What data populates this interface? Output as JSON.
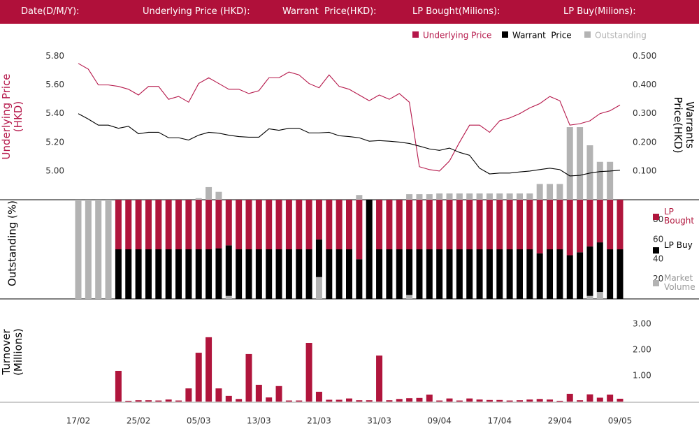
{
  "header": {
    "fields": [
      "Date(D/M/Y):",
      "Underlying Price (HKD):",
      "Warrant  Price(HKD):",
      "LP Bought(Milions):",
      "LP Buy(Milions):"
    ]
  },
  "chart_data": [
    {
      "type": "line",
      "ylabel": "Underlying Price (HKD)",
      "y2label": "Warrants  Price(HKD)",
      "ylim": [
        4.8,
        5.9
      ],
      "yticks": [
        {
          "value": 5.0,
          "label": "5.00"
        },
        {
          "value": 5.2,
          "label": "5.20"
        },
        {
          "value": 5.4,
          "label": "5.40"
        },
        {
          "value": 5.6,
          "label": "5.60"
        },
        {
          "value": 5.8,
          "label": "5.80"
        }
      ],
      "y2lim": [
        0,
        0.55
      ],
      "y2ticks": [
        {
          "value": 0.1,
          "label": "0.100"
        },
        {
          "value": 0.2,
          "label": "0.200"
        },
        {
          "value": 0.3,
          "label": "0.300"
        },
        {
          "value": 0.4,
          "label": "0.400"
        },
        {
          "value": 0.5,
          "label": "0.500"
        }
      ],
      "y3lim": [
        0,
        100
      ],
      "series": [
        {
          "name": "Underlying Price",
          "type": "line",
          "color": "#b5174a",
          "values": [
            5.75,
            5.71,
            5.6,
            5.6,
            5.59,
            5.57,
            5.53,
            5.59,
            5.59,
            5.5,
            5.52,
            5.48,
            5.61,
            5.65,
            5.61,
            5.57,
            5.57,
            5.54,
            5.56,
            5.65,
            5.65,
            5.69,
            5.67,
            5.61,
            5.58,
            5.67,
            5.59,
            5.57,
            5.53,
            5.49,
            5.53,
            5.5,
            5.54,
            5.48,
            5.03,
            5.01,
            5.0,
            5.07,
            5.2,
            5.32,
            5.32,
            5.27,
            5.35,
            5.37,
            5.4,
            5.44,
            5.47,
            5.52,
            5.49,
            5.32,
            5.33,
            5.35,
            5.4,
            5.42,
            5.46
          ]
        },
        {
          "name": "Warrant  Price",
          "type": "line",
          "axis": "y2",
          "color": "#000000",
          "values": [
            0.3,
            0.281,
            0.26,
            0.26,
            0.249,
            0.256,
            0.23,
            0.235,
            0.235,
            0.216,
            0.216,
            0.208,
            0.225,
            0.235,
            0.232,
            0.225,
            0.22,
            0.218,
            0.218,
            0.247,
            0.242,
            0.249,
            0.249,
            0.233,
            0.233,
            0.235,
            0.223,
            0.22,
            0.216,
            0.204,
            0.206,
            0.204,
            0.201,
            0.196,
            0.187,
            0.177,
            0.172,
            0.18,
            0.165,
            0.155,
            0.11,
            0.09,
            0.093,
            0.093,
            0.097,
            0.1,
            0.105,
            0.11,
            0.105,
            0.083,
            0.085,
            0.093,
            0.098,
            0.1,
            0.103
          ]
        },
        {
          "name": "Outstanding",
          "type": "bar",
          "axis": "y3",
          "color": "#b3b3b3",
          "values": [
            0,
            0,
            0,
            0,
            0,
            0,
            0,
            0,
            0,
            0,
            0,
            0,
            1,
            8,
            5,
            0,
            0,
            0,
            0,
            0,
            0,
            0,
            0,
            0,
            0,
            0,
            0,
            0,
            3,
            0,
            0,
            0,
            0,
            3.5,
            3.5,
            3.5,
            4,
            4,
            4,
            4,
            4,
            4,
            4,
            4,
            4,
            4,
            10,
            10,
            10,
            46,
            46,
            34.5,
            24,
            24,
            0
          ]
        }
      ]
    },
    {
      "type": "bar",
      "stacked": true,
      "ylabel": "Outstanding (%)",
      "ylim": [
        0,
        100
      ],
      "yticks": [
        20,
        40,
        60,
        80
      ],
      "series": [
        {
          "name": "LP Bought",
          "color": "#b0153c",
          "values": [
            0,
            0,
            0,
            0,
            50,
            50,
            50,
            50,
            50,
            50,
            50,
            50,
            50,
            50,
            49,
            46,
            50,
            50,
            50,
            50,
            50,
            50,
            50,
            50,
            40,
            50,
            50,
            50,
            60,
            0,
            50,
            50,
            50,
            50,
            50,
            50,
            50,
            50,
            50,
            50,
            50,
            50,
            50,
            50,
            50,
            50,
            54,
            50,
            50,
            56,
            53,
            47,
            43,
            50,
            50
          ]
        },
        {
          "name": "LP Buy",
          "color": "#000000",
          "values": [
            0,
            0,
            0,
            0,
            50,
            50,
            50,
            50,
            50,
            50,
            50,
            50,
            50,
            50,
            51,
            51,
            50,
            50,
            50,
            50,
            50,
            50,
            50,
            50,
            38,
            50,
            50,
            50,
            40,
            100,
            50,
            50,
            50,
            46,
            50,
            50,
            50,
            50,
            50,
            50,
            50,
            50,
            50,
            50,
            50,
            50,
            46,
            50,
            50,
            44,
            47,
            50,
            50,
            50,
            50
          ]
        },
        {
          "name": "Market Volume",
          "color": "#b3b3b3",
          "values": [
            100,
            100,
            100,
            100,
            0,
            0,
            0,
            0,
            0,
            0,
            0,
            0,
            0,
            0,
            0,
            3,
            0,
            0,
            0,
            0,
            0,
            0,
            0,
            0,
            22,
            0,
            0,
            0,
            0,
            0,
            0,
            0,
            0,
            4,
            0,
            0,
            0,
            0,
            0,
            0,
            0,
            0,
            0,
            0,
            0,
            0,
            0,
            0,
            0,
            0,
            0,
            3,
            7,
            0,
            0
          ]
        }
      ]
    },
    {
      "type": "bar",
      "ylabel": "Turnover (Millions)",
      "ylim": [
        0,
        3.5
      ],
      "yticks": [
        {
          "value": 1,
          "label": "1.00"
        },
        {
          "value": 2,
          "label": "2.00"
        },
        {
          "value": 3,
          "label": "3.00"
        }
      ],
      "categories": [
        "17/02",
        null,
        null,
        null,
        null,
        null,
        "25/02",
        null,
        null,
        null,
        null,
        null,
        "05/03",
        null,
        null,
        null,
        null,
        null,
        "13/03",
        null,
        null,
        null,
        null,
        null,
        "21/03",
        null,
        null,
        null,
        null,
        null,
        "31/03",
        null,
        null,
        null,
        null,
        null,
        "09/04",
        null,
        null,
        null,
        null,
        null,
        "17/04",
        null,
        null,
        null,
        null,
        null,
        "29/04",
        null,
        null,
        null,
        null,
        null,
        "09/05"
      ],
      "color": "#b0153c",
      "values": [
        0,
        0,
        0,
        0,
        1.19,
        0.03,
        0.05,
        0.05,
        0.04,
        0.08,
        0.04,
        0.51,
        1.89,
        2.49,
        0.51,
        0.22,
        0.1,
        1.84,
        0.65,
        0.16,
        0.6,
        0.04,
        0.04,
        2.27,
        0.38,
        0.07,
        0.07,
        0.12,
        0.05,
        0.05,
        1.78,
        0.05,
        0.1,
        0.13,
        0.14,
        0.27,
        0.04,
        0.12,
        0.04,
        0.12,
        0.08,
        0.06,
        0.06,
        0.04,
        0.05,
        0.08,
        0.1,
        0.08,
        0.03,
        0.3,
        0.05,
        0.28,
        0.15,
        0.27,
        0.11
      ]
    }
  ]
}
